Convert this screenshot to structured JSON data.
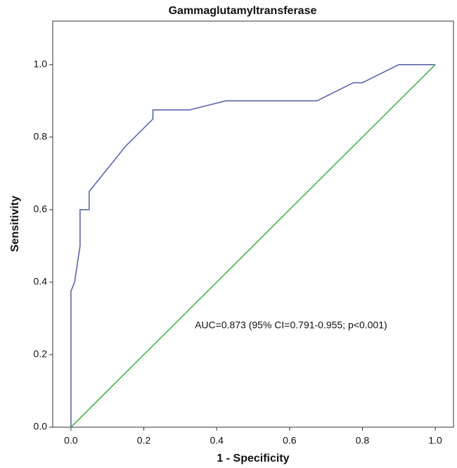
{
  "chart_data": {
    "type": "line",
    "title": "Gammaglutamyltransferase",
    "x_label": "1 - Specificity",
    "y_label": "Sensitivity",
    "annotation": "AUC=0.873 (95% CI=0.791-0.955; p<0.001)",
    "xlim": [
      -0.05,
      1.05
    ],
    "ylim": [
      0,
      1.12
    ],
    "xticks": [
      {
        "value": 0,
        "label": "0.0"
      },
      0.2,
      0.4,
      0.6,
      0.8,
      {
        "value": 1,
        "label": "1.0"
      }
    ],
    "yticks": [
      {
        "value": 0,
        "label": "0.0"
      },
      0.2,
      0.4,
      0.6,
      0.8,
      {
        "value": 1,
        "label": "1.0"
      }
    ],
    "series": [
      {
        "color": "#5a66a6",
        "x": [
          0,
          0,
          0.01,
          0.025,
          0.025,
          0.05,
          0.05,
          0.15,
          0.225,
          0.225,
          0.325,
          0.425,
          0.675,
          0.775,
          0.8,
          0.9,
          1
        ],
        "values": [
          0,
          0.375,
          0.4,
          0.5,
          0.6,
          0.6,
          0.65,
          0.775,
          0.85,
          0.875,
          0.875,
          0.9,
          0.9,
          0.95,
          0.95,
          1,
          1
        ]
      },
      {
        "color": "#4caf50",
        "x": [
          0,
          1
        ],
        "values": [
          0,
          1
        ]
      }
    ]
  }
}
